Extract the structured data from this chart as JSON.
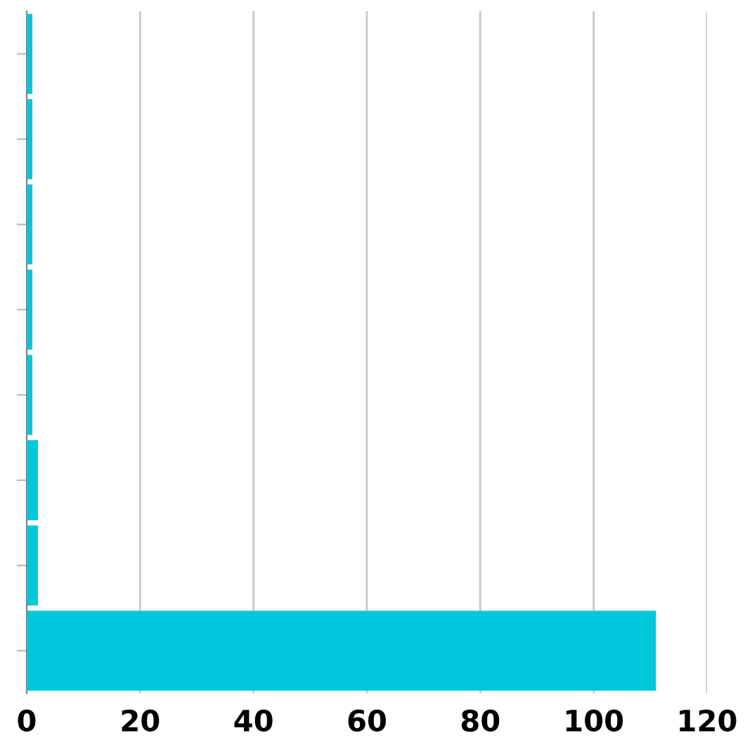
{
  "chart_data": {
    "type": "bar",
    "orientation": "horizontal",
    "categories": [
      null,
      null,
      null,
      null,
      null,
      null,
      null,
      null
    ],
    "values": [
      1,
      1,
      1,
      1,
      1,
      2,
      2,
      111
    ],
    "color": "#00c8dc",
    "xlim": [
      0,
      120
    ],
    "xticks": [
      0,
      20,
      40,
      60,
      80,
      100,
      120
    ],
    "grid": "x"
  }
}
